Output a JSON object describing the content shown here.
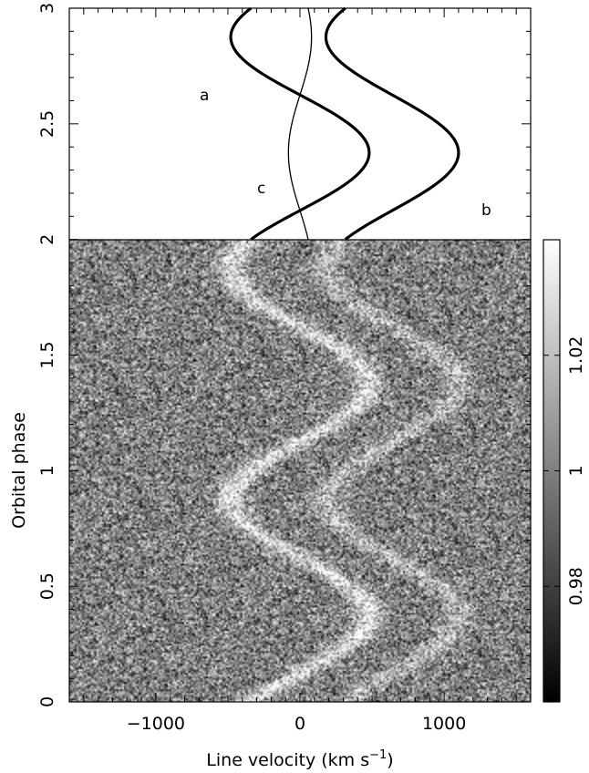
{
  "chart_data": {
    "type": "heatmap",
    "title": "",
    "xlabel": "Line velocity (km s",
    "xlabel_superscript": "−1",
    "xlabel_close": ")",
    "ylabel": "Orbital phase",
    "xlim": [
      -1600,
      1600
    ],
    "ylim": [
      0,
      3
    ],
    "heatmap_phase_range": [
      0,
      2
    ],
    "x_ticks": [
      {
        "value": -1000,
        "label": "−1000"
      },
      {
        "value": 0,
        "label": "0"
      },
      {
        "value": 1000,
        "label": "1000"
      }
    ],
    "y_ticks": [
      {
        "value": 0,
        "label": "0"
      },
      {
        "value": 0.5,
        "label": "0.5"
      },
      {
        "value": 1,
        "label": "1"
      },
      {
        "value": 1.5,
        "label": "1.5"
      },
      {
        "value": 2,
        "label": "2"
      },
      {
        "value": 2.5,
        "label": "2.5"
      },
      {
        "value": 3,
        "label": "3"
      }
    ],
    "colorbar": {
      "min": 0.96,
      "max": 1.04,
      "colormap": "grayscale",
      "ticks": [
        {
          "value": 0.98,
          "label": "0.98"
        },
        {
          "value": 1.0,
          "label": "1"
        },
        {
          "value": 1.02,
          "label": "1.02"
        }
      ]
    },
    "curves": [
      {
        "name": "a",
        "gamma": 0,
        "K": 480,
        "phase0": 0.125,
        "weight": "thick",
        "emission": 0.03
      },
      {
        "name": "b",
        "gamma": 640,
        "K": 460,
        "phase0": 0.125,
        "weight": "thick",
        "emission": 0.018
      },
      {
        "name": "c",
        "gamma": 0,
        "K": 80,
        "phase0": 0.625,
        "weight": "thin",
        "emission": 0.0
      }
    ],
    "curve_labels": [
      {
        "name": "a",
        "text": "a"
      },
      {
        "name": "b",
        "text": "b"
      },
      {
        "name": "c",
        "text": "c"
      }
    ]
  }
}
